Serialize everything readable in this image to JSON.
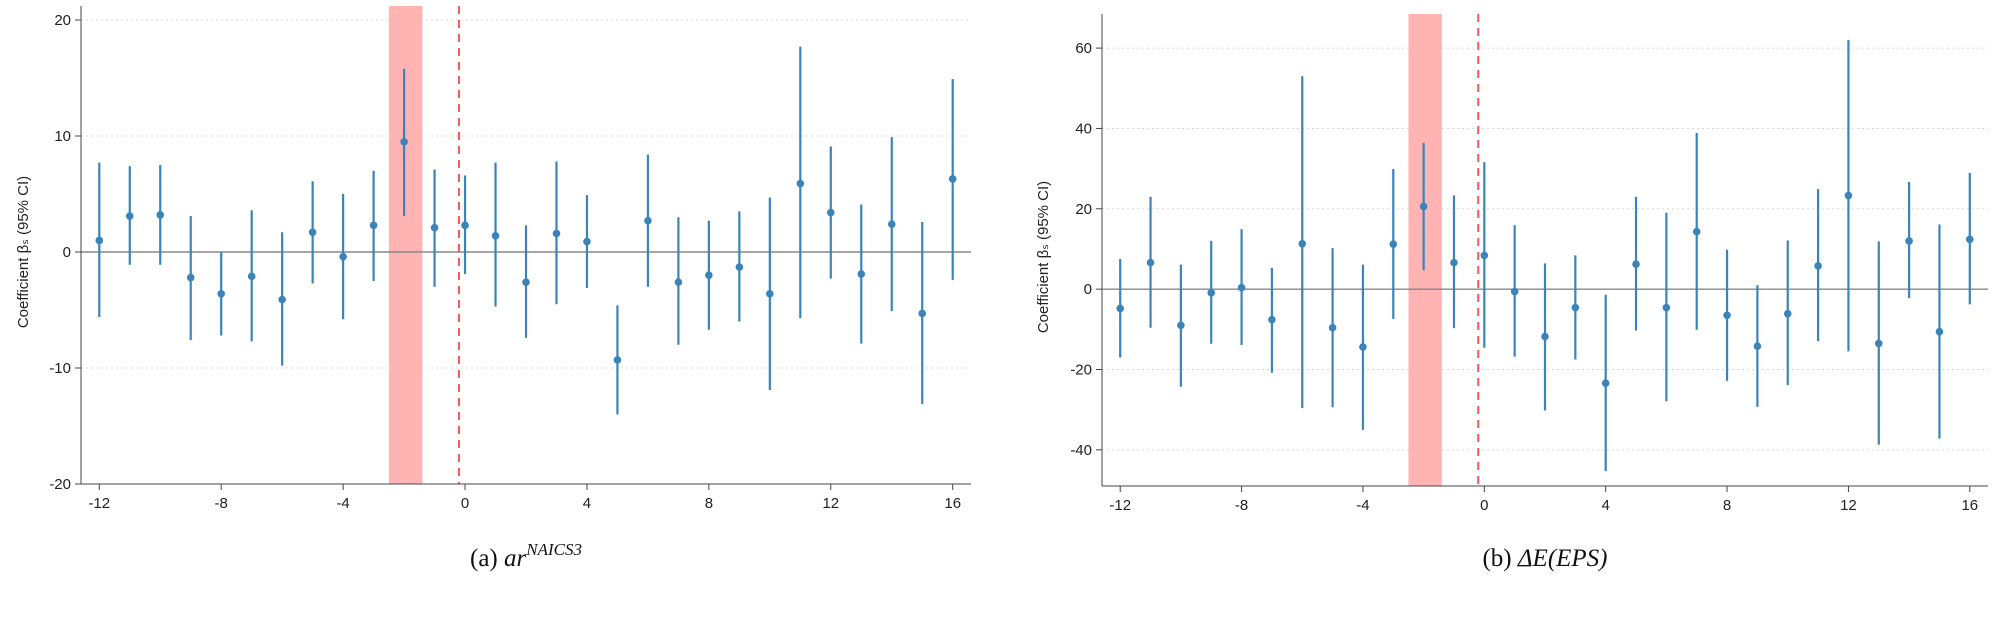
{
  "chart_data": [
    {
      "type": "scatter",
      "title": "",
      "xlabel": "",
      "ylabel": "Coefficient βₛ (95% CI)",
      "caption": {
        "prefix": "(a)",
        "math": "ar",
        "superscript": "NAICS3"
      },
      "xlim": [
        -12.6,
        16.6
      ],
      "ylim": [
        -20,
        20
      ],
      "xticks": [
        -12,
        -8,
        -4,
        0,
        4,
        8,
        12,
        16
      ],
      "yticks": [
        -20,
        -10,
        0,
        10,
        20
      ],
      "grid": "horizontal-dotted",
      "event_line_x": -0.2,
      "shaded_region": [
        -2.5,
        -1.4
      ],
      "colors": {
        "series": "#3a84b9",
        "shade": "#ffb3b3",
        "event_line": "#f05a5a",
        "zero_line": "#888888"
      },
      "series": [
        {
          "x": [
            -12,
            -11,
            -10,
            -9,
            -8,
            -7,
            -6,
            -5,
            -4,
            -3,
            -2,
            -1,
            0,
            1,
            2,
            3,
            4,
            5,
            6,
            7,
            8,
            9,
            10,
            11,
            12,
            13,
            14,
            15,
            16
          ],
          "y": [
            1.0,
            3.1,
            3.2,
            -2.2,
            -3.6,
            -2.1,
            -4.1,
            1.7,
            -0.4,
            2.3,
            9.5,
            2.1,
            2.3,
            1.4,
            -2.6,
            1.6,
            0.9,
            -9.3,
            2.7,
            -2.6,
            -2.0,
            -1.3,
            -3.6,
            5.9,
            3.4,
            -1.9,
            2.4,
            -5.3,
            6.3
          ],
          "lower": [
            -5.6,
            -1.1,
            -1.1,
            -7.6,
            -7.2,
            -7.7,
            -9.8,
            -2.7,
            -5.8,
            -2.5,
            3.1,
            -3.0,
            -1.9,
            -4.7,
            -7.4,
            -4.5,
            -3.1,
            -14.0,
            -3.0,
            -8.0,
            -6.7,
            -6.0,
            -11.9,
            -5.7,
            -2.3,
            -7.9,
            -5.1,
            -13.1,
            -2.4
          ],
          "upper": [
            7.7,
            7.4,
            7.5,
            3.1,
            0.0,
            3.6,
            1.7,
            6.1,
            5.0,
            7.0,
            15.8,
            7.1,
            6.6,
            7.7,
            2.3,
            7.8,
            4.9,
            -4.6,
            8.4,
            3.0,
            2.7,
            3.5,
            4.7,
            17.7,
            9.1,
            4.1,
            9.9,
            2.6,
            14.9
          ]
        }
      ]
    },
    {
      "type": "scatter",
      "title": "",
      "xlabel": "",
      "ylabel": "Coefficient βₛ (95% CI)",
      "caption": {
        "prefix": "(b)",
        "math": "ΔE(EPS)"
      },
      "xlim": [
        -12.6,
        16.6
      ],
      "ylim": [
        -49,
        65
      ],
      "xticks": [
        -12,
        -8,
        -4,
        0,
        4,
        8,
        12,
        16
      ],
      "yticks": [
        -40,
        -20,
        0,
        20,
        40,
        60
      ],
      "grid": "horizontal-dotted",
      "event_line_x": -0.2,
      "shaded_region": [
        -2.5,
        -1.4
      ],
      "colors": {
        "series": "#3a84b9",
        "shade": "#ffb3b3",
        "event_line": "#f05a5a",
        "zero_line": "#888888"
      },
      "series": [
        {
          "x": [
            -12,
            -11,
            -10,
            -9,
            -8,
            -7,
            -6,
            -5,
            -4,
            -3,
            -2,
            -1,
            0,
            1,
            2,
            3,
            4,
            5,
            6,
            7,
            8,
            9,
            10,
            11,
            12,
            13,
            14,
            15,
            16
          ],
          "y": [
            -4.8,
            6.6,
            -9.0,
            -0.9,
            0.4,
            -7.6,
            11.3,
            -9.6,
            -14.4,
            11.2,
            20.6,
            6.6,
            8.4,
            -0.6,
            -11.8,
            -4.6,
            -23.4,
            6.2,
            -4.6,
            14.3,
            -6.5,
            -14.2,
            -6.1,
            5.8,
            23.3,
            -13.5,
            12.0,
            -10.6,
            12.4
          ],
          "lower": [
            -17.0,
            -9.6,
            -24.3,
            -13.6,
            -13.9,
            -20.8,
            -29.6,
            -29.4,
            -35.0,
            -7.4,
            4.7,
            -9.7,
            -14.6,
            -16.8,
            -30.2,
            -17.5,
            -45.3,
            -10.3,
            -27.9,
            -10.1,
            -22.8,
            -29.3,
            -23.9,
            -12.9,
            -15.5,
            -38.7,
            -2.2,
            -37.2,
            -3.8
          ],
          "upper": [
            7.5,
            23.0,
            6.1,
            12.0,
            14.9,
            5.3,
            53.0,
            10.2,
            6.1,
            29.9,
            36.4,
            23.3,
            31.6,
            15.9,
            6.4,
            8.4,
            -1.4,
            23.0,
            19.0,
            38.9,
            9.8,
            1.0,
            12.1,
            24.9,
            62.0,
            11.9,
            26.7,
            16.1,
            28.9
          ]
        }
      ]
    }
  ]
}
